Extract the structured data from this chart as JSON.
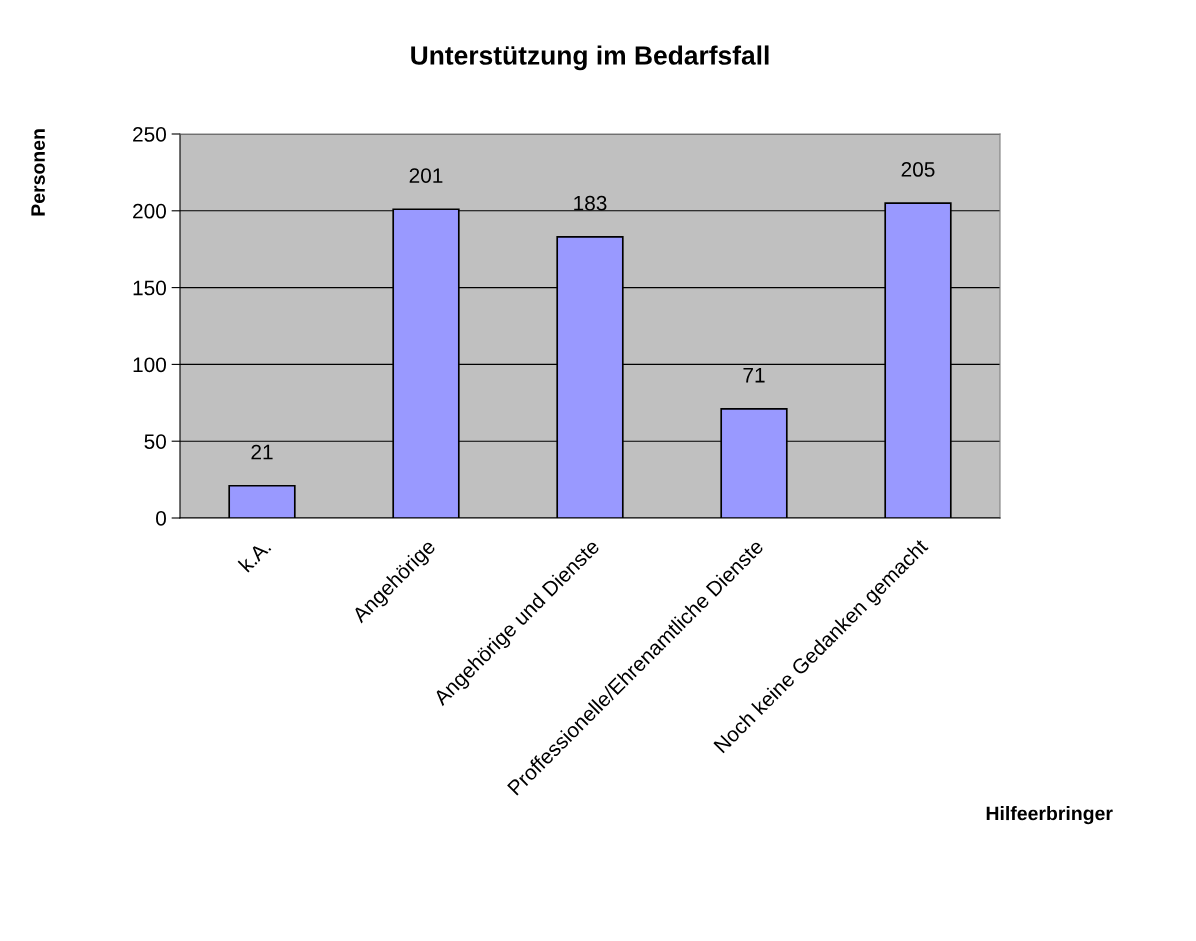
{
  "chart_data": {
    "type": "bar",
    "title": "Unterstützung im Bedarfsfall",
    "xlabel": "Hilfeerbringer",
    "ylabel": "Personen",
    "categories": [
      "k.A.",
      "Angehörige",
      "Angehörige und Dienste",
      "Proffessionelle/Ehrenamtliche Dienste",
      "Noch keine Gedanken gemacht"
    ],
    "values": [
      21,
      201,
      183,
      71,
      205
    ],
    "color": "#9999ff",
    "ylim": [
      0,
      250
    ],
    "yticks": [
      0,
      50,
      100,
      150,
      200,
      250
    ],
    "grid": "y",
    "data_labels": true
  }
}
